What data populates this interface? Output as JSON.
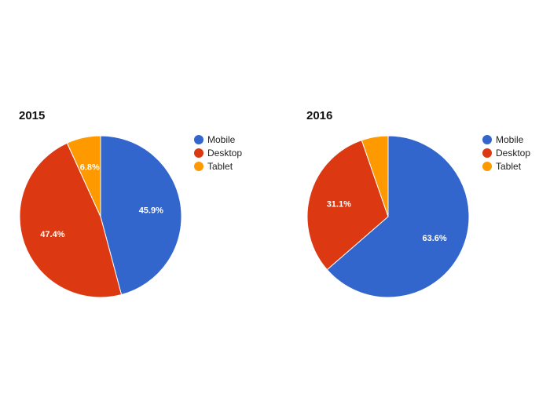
{
  "chart_data": [
    {
      "type": "pie",
      "title": "2015",
      "slices": [
        {
          "name": "Mobile",
          "value": 45.9,
          "color": "#3366cc",
          "label": "45.9%"
        },
        {
          "name": "Desktop",
          "value": 47.4,
          "color": "#dc3912",
          "label": "47.4%"
        },
        {
          "name": "Tablet",
          "value": 6.8,
          "color": "#ff9900",
          "label": "6.8%"
        }
      ],
      "legend": {
        "position": "right"
      }
    },
    {
      "type": "pie",
      "title": "2016",
      "slices": [
        {
          "name": "Mobile",
          "value": 63.6,
          "color": "#3366cc",
          "label": "63.6%"
        },
        {
          "name": "Desktop",
          "value": 31.1,
          "color": "#dc3912",
          "label": "31.1%"
        },
        {
          "name": "Tablet",
          "value": 5.3,
          "color": "#ff9900",
          "label": ""
        }
      ],
      "legend": {
        "position": "right"
      }
    }
  ]
}
